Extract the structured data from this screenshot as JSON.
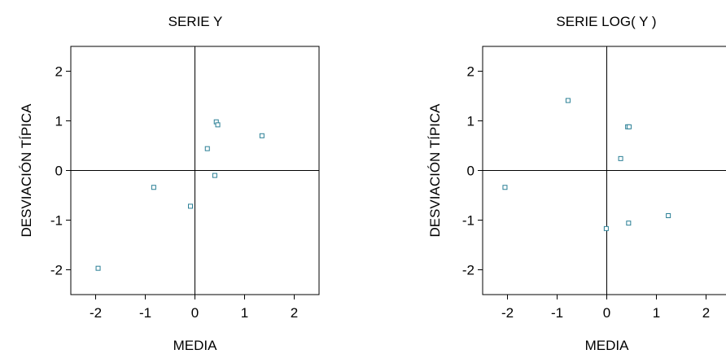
{
  "chart_data": [
    {
      "type": "scatter",
      "title": "SERIE  Y",
      "xlabel": "MEDIA",
      "ylabel": "DESVIACIÓN TÍPICA",
      "xlim": [
        -2.5,
        2.5
      ],
      "ylim": [
        -2.5,
        2.5
      ],
      "xticks": [
        "-2",
        "-1",
        "0",
        "1",
        "2"
      ],
      "yticks": [
        "2",
        "1",
        "0",
        "-1",
        "-2"
      ],
      "reference_lines": {
        "x": 0,
        "y": 0
      },
      "grid": false,
      "marker": "hollow-square",
      "marker_color": "#2a7f95",
      "points": [
        {
          "x": -1.95,
          "y": -1.97
        },
        {
          "x": -0.83,
          "y": -0.34
        },
        {
          "x": -0.09,
          "y": -0.72
        },
        {
          "x": 0.25,
          "y": 0.44
        },
        {
          "x": 0.4,
          "y": -0.1
        },
        {
          "x": 0.43,
          "y": 0.98
        },
        {
          "x": 0.46,
          "y": 0.92
        },
        {
          "x": 1.35,
          "y": 0.7
        }
      ]
    },
    {
      "type": "scatter",
      "title": "SERIE  LOG( Y )",
      "xlabel": "MEDIA",
      "ylabel": "DESVIACIÓN TÍPICA",
      "xlim": [
        -2.5,
        2.5
      ],
      "ylim": [
        -2.5,
        2.5
      ],
      "xticks": [
        "-2",
        "-1",
        "0",
        "1",
        "2"
      ],
      "yticks": [
        "2",
        "1",
        "0",
        "-1",
        "-2"
      ],
      "reference_lines": {
        "x": 0,
        "y": 0
      },
      "grid": false,
      "marker": "hollow-square",
      "marker_color": "#2a7f95",
      "points": [
        {
          "x": -2.05,
          "y": -0.34
        },
        {
          "x": -0.78,
          "y": 1.41
        },
        {
          "x": -0.01,
          "y": -1.17
        },
        {
          "x": 0.28,
          "y": 0.24
        },
        {
          "x": 0.42,
          "y": 0.88
        },
        {
          "x": 0.45,
          "y": 0.88
        },
        {
          "x": 0.44,
          "y": -1.06
        },
        {
          "x": 1.24,
          "y": -0.91
        }
      ]
    }
  ]
}
